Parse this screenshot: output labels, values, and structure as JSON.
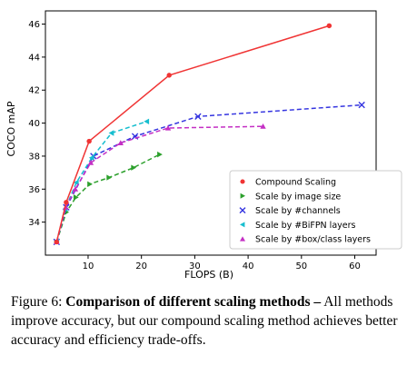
{
  "chart_data": {
    "type": "line",
    "xlabel": "FLOPS (B)",
    "ylabel": "COCO mAP",
    "xlim": [
      2,
      64
    ],
    "ylim": [
      32,
      46.8
    ],
    "xticks": [
      10,
      20,
      30,
      40,
      50,
      60
    ],
    "yticks": [
      34,
      36,
      38,
      40,
      42,
      44,
      46
    ],
    "grid": false,
    "legend_position": "bottom-right",
    "series": [
      {
        "name": "Compound Scaling",
        "color": "#f03434",
        "marker": "circle",
        "dashed": false,
        "x": [
          4.1,
          5.9,
          10.2,
          25.2,
          55.2
        ],
        "y": [
          32.8,
          35.2,
          38.9,
          42.9,
          45.9
        ]
      },
      {
        "name": "Scale by image size",
        "color": "#2ca02c",
        "marker": "triangle-right",
        "dashed": true,
        "x": [
          4.1,
          5.9,
          7.7,
          10.3,
          13.9,
          18.5,
          23.4
        ],
        "y": [
          32.8,
          34.6,
          35.5,
          36.3,
          36.7,
          37.3,
          38.1
        ]
      },
      {
        "name": "Scale by #channels",
        "color": "#3434e0",
        "marker": "x",
        "dashed": true,
        "x": [
          4.1,
          5.9,
          11.0,
          18.8,
          30.6,
          61.3
        ],
        "y": [
          32.8,
          34.9,
          38.0,
          39.2,
          40.4,
          41.1
        ]
      },
      {
        "name": "Scale by #BiFPN layers",
        "color": "#17becf",
        "marker": "triangle-left",
        "dashed": true,
        "x": [
          4.1,
          5.7,
          7.8,
          10.7,
          14.4,
          21.0
        ],
        "y": [
          32.8,
          34.8,
          36.4,
          37.9,
          39.4,
          40.1
        ]
      },
      {
        "name": "Scale by #box/class layers",
        "color": "#c42fc4",
        "marker": "triangle-up",
        "dashed": true,
        "x": [
          4.1,
          5.8,
          7.6,
          10.5,
          16.1,
          25.0,
          42.8
        ],
        "y": [
          32.8,
          34.9,
          36.0,
          37.6,
          38.8,
          39.7,
          39.8
        ]
      }
    ]
  },
  "caption": {
    "prefix": "Figure 6:",
    "bold": "Comparison of different scaling methods –",
    "rest": "All methods improve accuracy, but our compound scaling method achieves better accuracy and efficiency trade-offs."
  }
}
